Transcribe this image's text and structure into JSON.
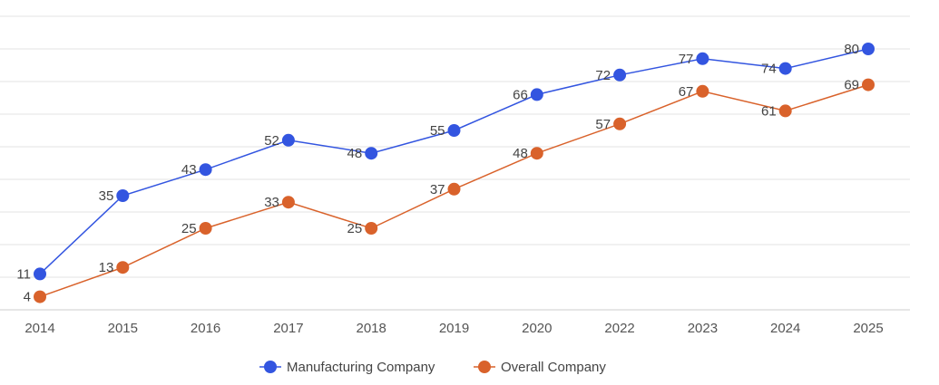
{
  "chart_data": {
    "type": "line",
    "title": "",
    "xlabel": "",
    "ylabel": "",
    "categories": [
      "2014",
      "2015",
      "2016",
      "2017",
      "2018",
      "2019",
      "2020",
      "2022",
      "2023",
      "2024",
      "2025"
    ],
    "series": [
      {
        "name": "Manufacturing Company",
        "color": "#3355e0",
        "values": [
          11,
          35,
          43,
          52,
          48,
          55,
          66,
          72,
          77,
          74,
          80
        ]
      },
      {
        "name": "Overall Company",
        "color": "#d9622b",
        "values": [
          4,
          13,
          25,
          33,
          25,
          37,
          48,
          57,
          67,
          61,
          69
        ]
      }
    ],
    "ylim": [
      0,
      90
    ],
    "grid": true,
    "legend_position": "bottom-center"
  }
}
